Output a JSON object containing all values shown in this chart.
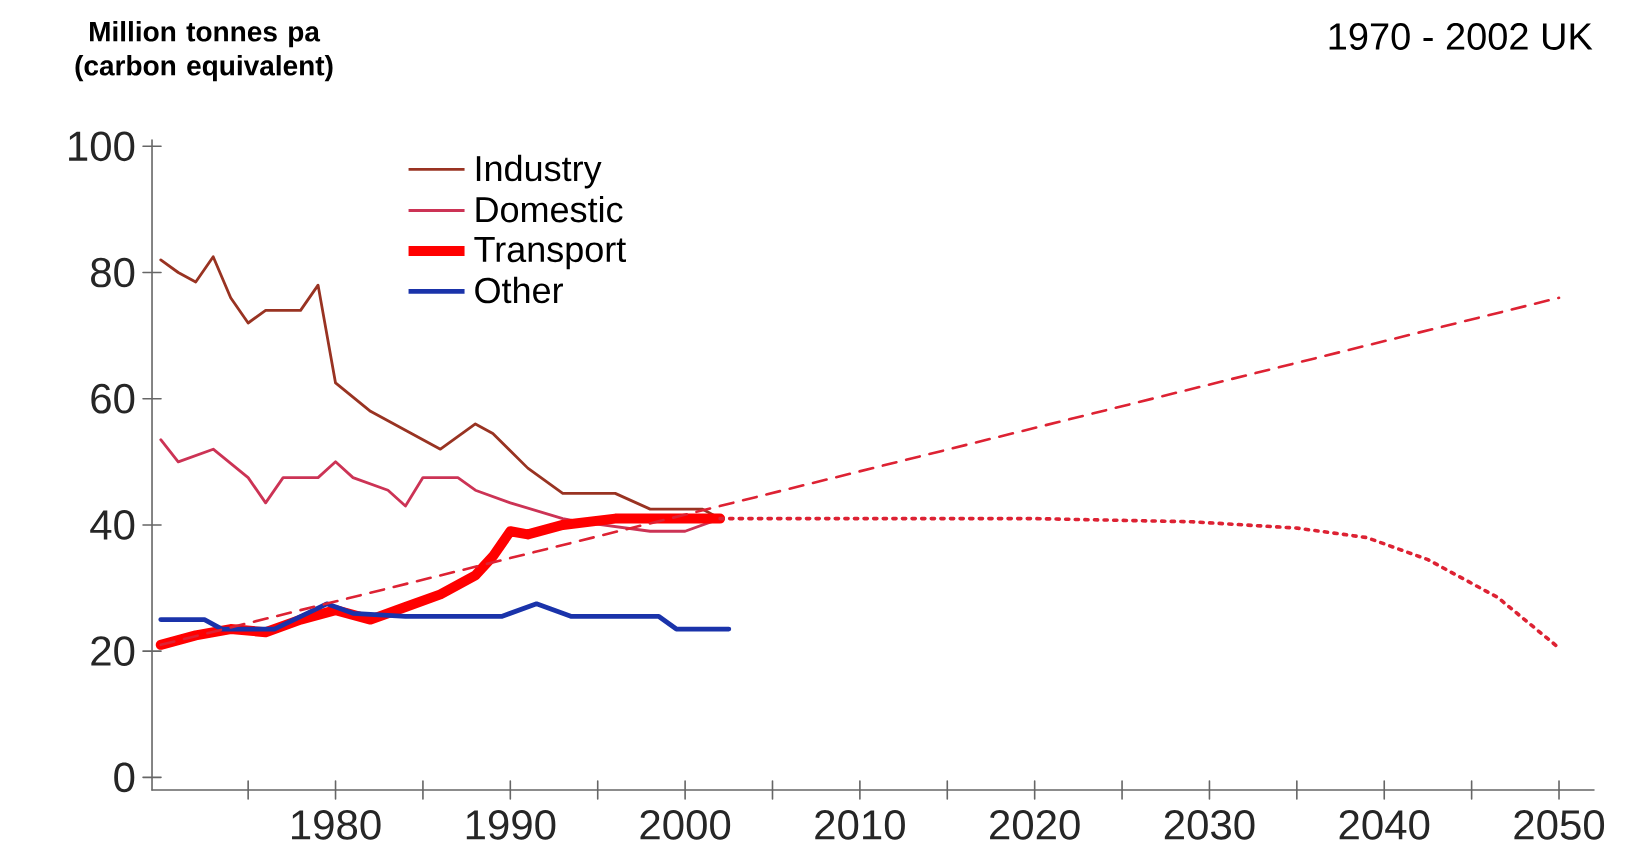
{
  "chart_data": {
    "type": "line",
    "title": "1970 - 2002 UK",
    "ylabel": "Million tonnes pa (carbon equivalent)",
    "xlim": [
      1969.5,
      2052
    ],
    "ylim": [
      -2,
      101
    ],
    "xticks": [
      {
        "value": 1975,
        "label": null
      },
      1980,
      {
        "value": 1985,
        "label": null
      },
      1990,
      {
        "value": 1995,
        "label": null
      },
      2000,
      {
        "value": 2005,
        "label": null
      },
      2010,
      {
        "value": 2015,
        "label": null
      },
      2020,
      {
        "value": 2025,
        "label": null
      },
      2030,
      {
        "value": 2035,
        "label": null
      },
      2040,
      {
        "value": 2045,
        "label": null
      },
      2050
    ],
    "yticks": [
      0,
      20,
      40,
      60,
      80,
      100
    ],
    "legend": "top left",
    "marker": "none",
    "grid": false,
    "series": [
      {
        "name": "Industry",
        "color": "#993322",
        "line_style": "solid",
        "x": [
          1970,
          1971,
          1972,
          1973,
          1974,
          1975,
          1976,
          1977,
          1978,
          1979,
          1980,
          1982,
          1984,
          1986,
          1988,
          1989,
          1991,
          1993,
          1996,
          1998,
          2001,
          2002
        ],
        "values": [
          82,
          80,
          78.5,
          82.5,
          76,
          72,
          74,
          74,
          74,
          78,
          62.5,
          58,
          55,
          52,
          56,
          54.5,
          49,
          45,
          45,
          42.5,
          42.5,
          41
        ]
      },
      {
        "name": "Domestic",
        "color": "#cc3355",
        "line_style": "solid",
        "x": [
          1970,
          1971,
          1973,
          1975,
          1976,
          1977,
          1979,
          1980,
          1981,
          1983,
          1984,
          1985,
          1987,
          1988,
          1990,
          1993,
          1994,
          1998,
          2000,
          2002
        ],
        "values": [
          53.5,
          50,
          52,
          47.5,
          43.5,
          47.5,
          47.5,
          50,
          47.5,
          45.5,
          43,
          47.5,
          47.5,
          45.5,
          43.5,
          41,
          40.5,
          39,
          39,
          41
        ]
      },
      {
        "name": "Transport",
        "color": "#ff0000",
        "line_style": "solid",
        "x": [
          1970,
          1972,
          1974,
          1976,
          1978,
          1980,
          1982,
          1984,
          1986,
          1988,
          1989,
          1990,
          1991,
          1993,
          1996,
          2000,
          2002
        ],
        "values": [
          21,
          22.5,
          23.5,
          23,
          25,
          26.5,
          25,
          27,
          29,
          32,
          35,
          39,
          38.5,
          40,
          41,
          41,
          41
        ]
      },
      {
        "name": "Other",
        "color": "#1a33aa",
        "line_style": "solid",
        "x": [
          1970,
          1972.5,
          1973.5,
          1976.5,
          1979.5,
          1981,
          1984,
          1989.5,
          1991.5,
          1993.5,
          1998.5,
          1999.5,
          2002.5
        ],
        "values": [
          25,
          25,
          23.5,
          23.5,
          27.5,
          26,
          25.5,
          25.5,
          27.5,
          25.5,
          25.5,
          23.5,
          23.5
        ]
      },
      {
        "color": "#dd2233",
        "line_style": "dashed",
        "x": [
          1970,
          2050
        ],
        "values": [
          21,
          76
        ]
      },
      {
        "color": "#dd2233",
        "line_style": "dotted",
        "x": [
          2002,
          2010,
          2020,
          2029,
          2035,
          2039,
          2042.5,
          2046.5,
          2050
        ],
        "values": [
          41,
          41,
          41,
          40.5,
          39.5,
          38,
          34.5,
          28.5,
          20.5
        ]
      }
    ]
  }
}
